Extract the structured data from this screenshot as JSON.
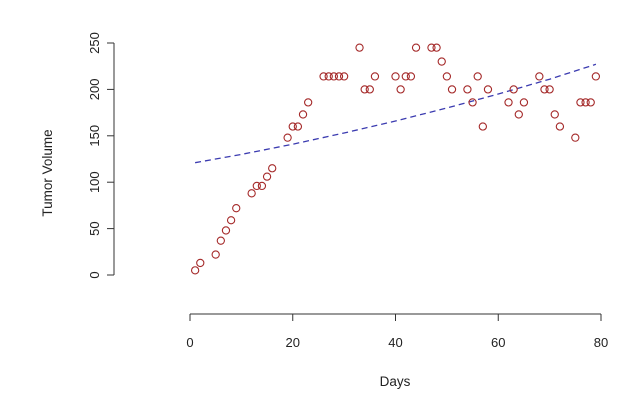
{
  "chart_data": {
    "type": "scatter",
    "title": "",
    "xlabel": "Days",
    "ylabel": "Tumor Volume",
    "xlim": [
      0,
      80
    ],
    "ylim": [
      0,
      250
    ],
    "x_ticks": [
      "0",
      "20",
      "40",
      "60",
      "80"
    ],
    "y_ticks": [
      "0",
      "50",
      "100",
      "150",
      "200",
      "250"
    ],
    "grid": false,
    "legend": "none",
    "series": [
      {
        "marker": "open-circle",
        "color": "#a52a2a",
        "points": [
          [
            1,
            5
          ],
          [
            2,
            13
          ],
          [
            5,
            22
          ],
          [
            6,
            37
          ],
          [
            7,
            48
          ],
          [
            8,
            59
          ],
          [
            9,
            72
          ],
          [
            12,
            88
          ],
          [
            13,
            96
          ],
          [
            14,
            96
          ],
          [
            15,
            106
          ],
          [
            16,
            115
          ],
          [
            19,
            148
          ],
          [
            20,
            160
          ],
          [
            21,
            160
          ],
          [
            22,
            173
          ],
          [
            23,
            186
          ],
          [
            26,
            214
          ],
          [
            27,
            214
          ],
          [
            28,
            214
          ],
          [
            29,
            214
          ],
          [
            30,
            214
          ],
          [
            33,
            245
          ],
          [
            34,
            200
          ],
          [
            35,
            200
          ],
          [
            36,
            214
          ],
          [
            40,
            214
          ],
          [
            41,
            200
          ],
          [
            42,
            214
          ],
          [
            43,
            214
          ],
          [
            44,
            245
          ],
          [
            47,
            245
          ],
          [
            48,
            245
          ],
          [
            49,
            230
          ],
          [
            50,
            214
          ],
          [
            51,
            200
          ],
          [
            54,
            200
          ],
          [
            55,
            186
          ],
          [
            56,
            214
          ],
          [
            57,
            160
          ],
          [
            58,
            200
          ],
          [
            62,
            186
          ],
          [
            63,
            200
          ],
          [
            64,
            173
          ],
          [
            65,
            186
          ],
          [
            68,
            214
          ],
          [
            69,
            200
          ],
          [
            70,
            200
          ],
          [
            71,
            173
          ],
          [
            72,
            160
          ],
          [
            75,
            148
          ],
          [
            76,
            186
          ],
          [
            77,
            186
          ],
          [
            78,
            186
          ],
          [
            79,
            214
          ]
        ]
      },
      {
        "type": "line",
        "style": "dashed",
        "color": "#3b3bb0",
        "points": [
          [
            1,
            121
          ],
          [
            10,
            130
          ],
          [
            20,
            141
          ],
          [
            30,
            153
          ],
          [
            40,
            166
          ],
          [
            50,
            180
          ],
          [
            60,
            195
          ],
          [
            70,
            211
          ],
          [
            79,
            227
          ]
        ]
      }
    ]
  }
}
